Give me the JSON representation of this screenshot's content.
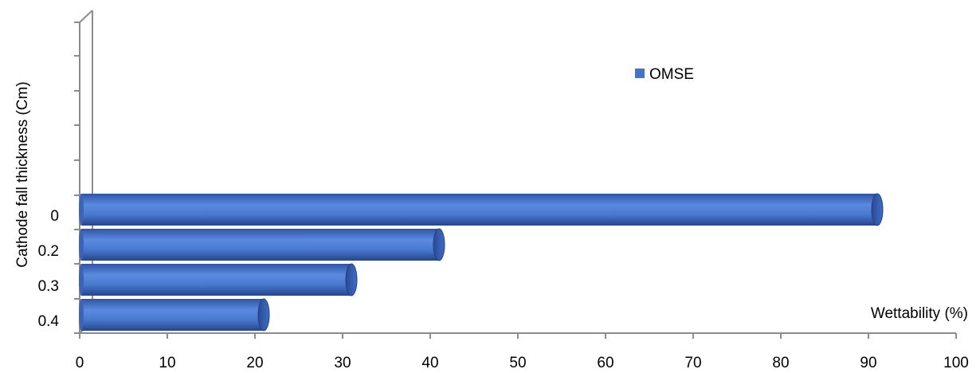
{
  "chart_data": {
    "type": "bar",
    "orientation": "horizontal",
    "categories": [
      "0",
      "0.2",
      "0.3",
      "0.4"
    ],
    "series": [
      {
        "name": "OMSE",
        "values": [
          91,
          41,
          31,
          21
        ]
      }
    ],
    "xlabel": "Wettability (%)",
    "ylabel": "Cathode fall thickness (Cm)",
    "xlim": [
      0,
      100
    ],
    "x_ticks": [
      "0",
      "10",
      "20",
      "30",
      "40",
      "50",
      "60",
      "70",
      "80",
      "90",
      "100"
    ],
    "legend_position": "top-right",
    "grid": false,
    "bar_color": "#4472C4",
    "three_d": true
  }
}
